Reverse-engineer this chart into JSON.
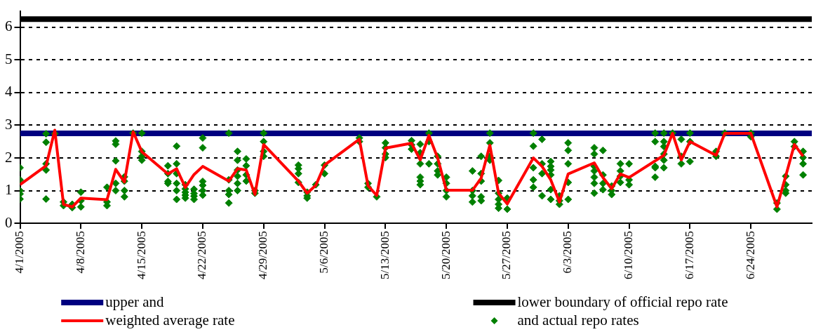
{
  "chart_data": {
    "type": "line",
    "xlim": [
      "2005-04-01",
      "2005-07-01"
    ],
    "xticks": [
      {
        "value": "2005-04-01",
        "label": "4/1/2005"
      },
      {
        "value": "2005-04-08",
        "label": "4/8/2005"
      },
      {
        "value": "2005-04-15",
        "label": "4/15/2005"
      },
      {
        "value": "2005-04-22",
        "label": "4/22/2005"
      },
      {
        "value": "2005-04-29",
        "label": "4/29/2005"
      },
      {
        "value": "2005-05-06",
        "label": "5/6/2005"
      },
      {
        "value": "2005-05-13",
        "label": "5/13/2005"
      },
      {
        "value": "2005-05-20",
        "label": "5/20/2005"
      },
      {
        "value": "2005-05-27",
        "label": "5/27/2005"
      },
      {
        "value": "2005-06-03",
        "label": "6/3/2005"
      },
      {
        "value": "2005-06-10",
        "label": "6/10/2005"
      },
      {
        "value": "2005-06-17",
        "label": "6/17/2005"
      },
      {
        "value": "2005-06-24",
        "label": "6/24/2005"
      }
    ],
    "ylim": [
      0,
      6.5
    ],
    "yticks": [
      0,
      1,
      2,
      3,
      4,
      5,
      6
    ],
    "grid": "y",
    "legend": "bottom",
    "series": [
      {
        "name": "upper and",
        "type": "line",
        "color": "#000080",
        "marker": "none",
        "x": [
          "2005-04-01",
          "2005-07-01"
        ],
        "values": [
          2.75,
          2.75
        ]
      },
      {
        "name": "lower boundary of official repo rate",
        "type": "line",
        "color": "#000000",
        "marker": "none",
        "x": [
          "2005-04-01",
          "2005-07-01"
        ],
        "values": [
          6.25,
          6.25
        ]
      },
      {
        "name": "weighted average rate",
        "type": "line",
        "color": "#ff0000",
        "marker": "none",
        "x": [
          "2005-04-01",
          "2005-04-04",
          "2005-04-05",
          "2005-04-06",
          "2005-04-07",
          "2005-04-08",
          "2005-04-11",
          "2005-04-12",
          "2005-04-13",
          "2005-04-14",
          "2005-04-15",
          "2005-04-18",
          "2005-04-19",
          "2005-04-20",
          "2005-04-21",
          "2005-04-22",
          "2005-04-25",
          "2005-04-26",
          "2005-04-27",
          "2005-04-28",
          "2005-04-29",
          "2005-05-03",
          "2005-05-04",
          "2005-05-05",
          "2005-05-06",
          "2005-05-10",
          "2005-05-11",
          "2005-05-12",
          "2005-05-13",
          "2005-05-16",
          "2005-05-17",
          "2005-05-18",
          "2005-05-19",
          "2005-05-20",
          "2005-05-23",
          "2005-05-24",
          "2005-05-25",
          "2005-05-26",
          "2005-05-27",
          "2005-05-30",
          "2005-05-31",
          "2005-06-01",
          "2005-06-02",
          "2005-06-03",
          "2005-06-06",
          "2005-06-07",
          "2005-06-08",
          "2005-06-09",
          "2005-06-10",
          "2005-06-14",
          "2005-06-15",
          "2005-06-16",
          "2005-06-17",
          "2005-06-20",
          "2005-06-21",
          "2005-06-24",
          "2005-06-27",
          "2005-06-28",
          "2005-06-29",
          "2005-06-30"
        ],
        "values": [
          1.18,
          1.76,
          2.85,
          0.58,
          0.5,
          0.77,
          0.72,
          1.65,
          1.26,
          2.8,
          2.19,
          1.51,
          1.67,
          1.1,
          1.49,
          1.74,
          1.29,
          1.67,
          1.63,
          0.88,
          2.41,
          1.29,
          0.92,
          1.16,
          1.78,
          2.57,
          1.15,
          0.85,
          2.3,
          2.45,
          1.94,
          2.69,
          2.0,
          1.01,
          1.01,
          1.38,
          2.39,
          0.92,
          0.59,
          2.0,
          1.74,
          1.33,
          0.65,
          1.51,
          1.85,
          1.4,
          1.06,
          1.51,
          1.4,
          2.08,
          2.75,
          1.94,
          2.5,
          2.08,
          2.75,
          2.75,
          0.5,
          1.44,
          2.41,
          2.05
        ]
      },
      {
        "name": "and actual repo rates",
        "type": "scatter",
        "color": "#008000",
        "marker": "diamond",
        "x": [
          "2005-04-01",
          "2005-04-01",
          "2005-04-01",
          "2005-04-01",
          "2005-04-01",
          "2005-04-04",
          "2005-04-04",
          "2005-04-04",
          "2005-04-04",
          "2005-04-04",
          "2005-04-05",
          "2005-04-06",
          "2005-04-06",
          "2005-04-07",
          "2005-04-07",
          "2005-04-08",
          "2005-04-08",
          "2005-04-08",
          "2005-04-11",
          "2005-04-11",
          "2005-04-11",
          "2005-04-12",
          "2005-04-12",
          "2005-04-12",
          "2005-04-12",
          "2005-04-12",
          "2005-04-13",
          "2005-04-13",
          "2005-04-13",
          "2005-04-13",
          "2005-04-14",
          "2005-04-15",
          "2005-04-15",
          "2005-04-15",
          "2005-04-15",
          "2005-04-18",
          "2005-04-18",
          "2005-04-18",
          "2005-04-18",
          "2005-04-19",
          "2005-04-19",
          "2005-04-19",
          "2005-04-19",
          "2005-04-19",
          "2005-04-19",
          "2005-04-20",
          "2005-04-20",
          "2005-04-20",
          "2005-04-20",
          "2005-04-20",
          "2005-04-21",
          "2005-04-21",
          "2005-04-21",
          "2005-04-21",
          "2005-04-22",
          "2005-04-22",
          "2005-04-22",
          "2005-04-22",
          "2005-04-22",
          "2005-04-22",
          "2005-04-25",
          "2005-04-25",
          "2005-04-25",
          "2005-04-25",
          "2005-04-25",
          "2005-04-26",
          "2005-04-26",
          "2005-04-26",
          "2005-04-26",
          "2005-04-26",
          "2005-04-26",
          "2005-04-27",
          "2005-04-27",
          "2005-04-27",
          "2005-04-27",
          "2005-04-28",
          "2005-04-28",
          "2005-04-29",
          "2005-04-29",
          "2005-04-29",
          "2005-04-29",
          "2005-05-03",
          "2005-05-03",
          "2005-05-03",
          "2005-05-03",
          "2005-05-04",
          "2005-05-04",
          "2005-05-04",
          "2005-05-05",
          "2005-05-06",
          "2005-05-06",
          "2005-05-10",
          "2005-05-10",
          "2005-05-11",
          "2005-05-11",
          "2005-05-12",
          "2005-05-13",
          "2005-05-13",
          "2005-05-13",
          "2005-05-13",
          "2005-05-16",
          "2005-05-16",
          "2005-05-16",
          "2005-05-17",
          "2005-05-17",
          "2005-05-17",
          "2005-05-17",
          "2005-05-17",
          "2005-05-17",
          "2005-05-18",
          "2005-05-18",
          "2005-05-18",
          "2005-05-19",
          "2005-05-19",
          "2005-05-19",
          "2005-05-19",
          "2005-05-20",
          "2005-05-20",
          "2005-05-20",
          "2005-05-20",
          "2005-05-23",
          "2005-05-23",
          "2005-05-23",
          "2005-05-23",
          "2005-05-24",
          "2005-05-24",
          "2005-05-24",
          "2005-05-24",
          "2005-05-24",
          "2005-05-25",
          "2005-05-25",
          "2005-05-25",
          "2005-05-25",
          "2005-05-26",
          "2005-05-26",
          "2005-05-26",
          "2005-05-26",
          "2005-05-26",
          "2005-05-27",
          "2005-05-27",
          "2005-05-30",
          "2005-05-30",
          "2005-05-30",
          "2005-05-30",
          "2005-05-30",
          "2005-05-31",
          "2005-05-31",
          "2005-05-31",
          "2005-05-31",
          "2005-06-01",
          "2005-06-01",
          "2005-06-01",
          "2005-06-01",
          "2005-06-01",
          "2005-06-01",
          "2005-06-02",
          "2005-06-02",
          "2005-06-02",
          "2005-06-03",
          "2005-06-03",
          "2005-06-03",
          "2005-06-03",
          "2005-06-03",
          "2005-06-06",
          "2005-06-06",
          "2005-06-06",
          "2005-06-06",
          "2005-06-06",
          "2005-06-06",
          "2005-06-06",
          "2005-06-07",
          "2005-06-07",
          "2005-06-07",
          "2005-06-07",
          "2005-06-08",
          "2005-06-08",
          "2005-06-08",
          "2005-06-09",
          "2005-06-09",
          "2005-06-09",
          "2005-06-09",
          "2005-06-10",
          "2005-06-10",
          "2005-06-10",
          "2005-06-13",
          "2005-06-13",
          "2005-06-13",
          "2005-06-13",
          "2005-06-13",
          "2005-06-14",
          "2005-06-14",
          "2005-06-14",
          "2005-06-14",
          "2005-06-14",
          "2005-06-14",
          "2005-06-15",
          "2005-06-16",
          "2005-06-16",
          "2005-06-16",
          "2005-06-17",
          "2005-06-17",
          "2005-06-17",
          "2005-06-20",
          "2005-06-20",
          "2005-06-21",
          "2005-06-24",
          "2005-06-24",
          "2005-06-27",
          "2005-06-27",
          "2005-06-28",
          "2005-06-28",
          "2005-06-28",
          "2005-06-28",
          "2005-06-29",
          "2005-06-29",
          "2005-06-30",
          "2005-06-30",
          "2005-06-30",
          "2005-06-30"
        ],
        "values": [
          1.7,
          1.33,
          1.0,
          0.9,
          0.74,
          2.74,
          2.48,
          1.82,
          1.63,
          0.74,
          2.74,
          0.65,
          0.54,
          0.58,
          0.48,
          0.95,
          0.69,
          0.5,
          1.1,
          0.65,
          0.54,
          2.52,
          2.42,
          1.91,
          1.22,
          1.0,
          1.42,
          1.29,
          1.0,
          0.81,
          2.76,
          2.76,
          2.2,
          2.05,
          1.93,
          1.76,
          1.52,
          1.28,
          1.22,
          2.36,
          1.82,
          1.52,
          1.22,
          1.0,
          0.73,
          1.18,
          1.05,
          0.95,
          0.86,
          0.77,
          1.04,
          0.91,
          0.83,
          0.73,
          2.61,
          2.31,
          1.28,
          1.16,
          1.0,
          0.86,
          2.76,
          1.33,
          1.0,
          0.88,
          0.62,
          2.2,
          1.93,
          1.63,
          1.44,
          1.22,
          1.0,
          1.97,
          1.76,
          1.48,
          1.29,
          1.0,
          0.92,
          2.76,
          2.5,
          2.2,
          2.05,
          1.78,
          1.67,
          1.52,
          1.25,
          0.95,
          0.84,
          0.77,
          1.18,
          1.78,
          1.52,
          2.61,
          2.5,
          1.22,
          1.1,
          0.81,
          2.46,
          2.31,
          2.12,
          2.01,
          2.53,
          2.4,
          2.27,
          2.42,
          2.16,
          1.82,
          1.41,
          1.29,
          1.18,
          2.76,
          2.5,
          1.82,
          2.05,
          1.82,
          1.6,
          1.48,
          1.41,
          1.22,
          1.0,
          0.81,
          1.6,
          1.0,
          0.84,
          0.65,
          2.05,
          1.52,
          1.29,
          0.81,
          0.69,
          2.76,
          2.46,
          2.05,
          1.93,
          1.31,
          0.92,
          0.73,
          0.58,
          0.46,
          0.77,
          0.43,
          2.76,
          2.36,
          1.7,
          1.33,
          1.1,
          2.57,
          1.82,
          1.52,
          0.84,
          1.89,
          1.74,
          1.63,
          1.48,
          1.03,
          0.73,
          0.84,
          0.69,
          0.58,
          2.46,
          2.23,
          1.82,
          1.25,
          0.73,
          2.31,
          2.12,
          1.74,
          1.6,
          1.41,
          1.22,
          0.92,
          2.23,
          1.48,
          1.22,
          1.03,
          1.14,
          1.0,
          0.88,
          1.82,
          1.6,
          1.44,
          1.25,
          1.82,
          1.33,
          1.18,
          2.76,
          2.5,
          1.74,
          1.7,
          1.41,
          2.76,
          2.5,
          2.35,
          2.12,
          1.93,
          1.7,
          2.76,
          2.57,
          2.05,
          1.82,
          2.76,
          2.5,
          1.89,
          2.2,
          2.05,
          2.76,
          2.76,
          2.65,
          0.62,
          0.43,
          1.44,
          1.18,
          1.0,
          0.92,
          2.5,
          2.35,
          2.2,
          2.01,
          1.82,
          1.48
        ]
      }
    ]
  }
}
